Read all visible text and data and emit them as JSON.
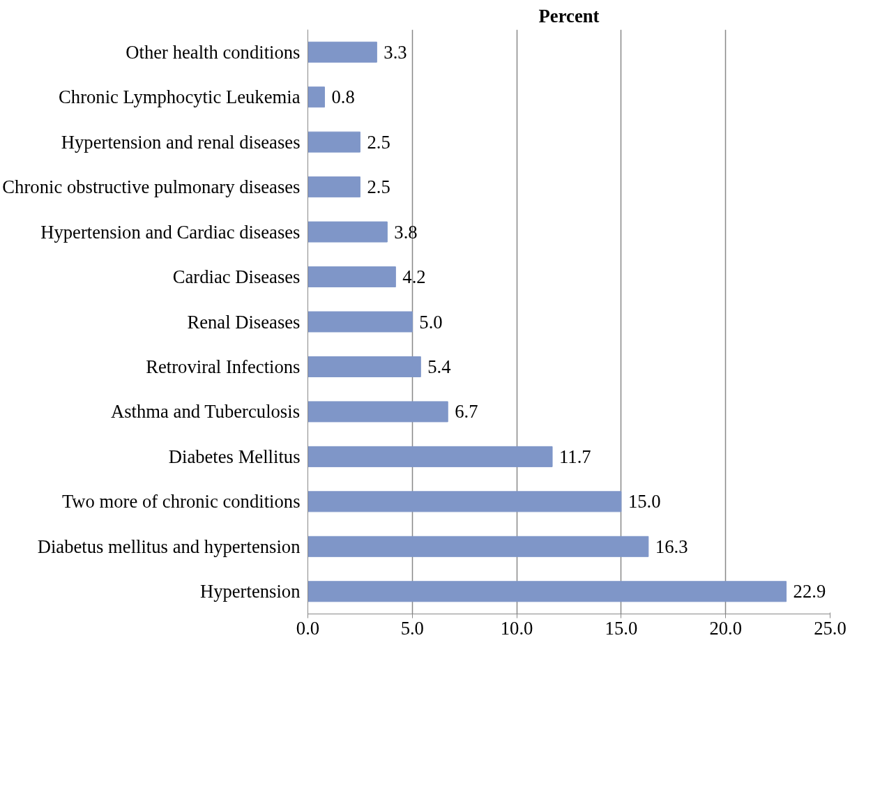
{
  "chart_data": {
    "type": "bar",
    "orientation": "horizontal",
    "title": "Percent",
    "categories": [
      "Other health conditions",
      "Chronic Lymphocytic Leukemia",
      "Hypertension and renal diseases",
      "Chronic obstructive pulmonary diseases",
      "Hypertension and Cardiac diseases",
      "Cardiac Diseases",
      "Renal Diseases",
      "Retroviral Infections",
      "Asthma and Tuberculosis",
      "Diabetes Mellitus",
      "Two more of chronic conditions",
      "Diabetus mellitus and hypertension",
      "Hypertension"
    ],
    "values": [
      3.3,
      0.8,
      2.5,
      2.5,
      3.8,
      4.2,
      5.0,
      5.4,
      6.7,
      11.7,
      15.0,
      16.3,
      22.9
    ],
    "value_labels": [
      "3.3",
      "0.8",
      "2.5",
      "2.5",
      "3.8",
      "4.2",
      "5.0",
      "5.4",
      "6.7",
      "11.7",
      "15.0",
      "16.3",
      "22.9"
    ],
    "color": "#7f96c8",
    "xlim": [
      0,
      25
    ],
    "xticks": [
      {
        "value": 0,
        "label": "0.0"
      },
      {
        "value": 5,
        "label": "5.0"
      },
      {
        "value": 10,
        "label": "10.0"
      },
      {
        "value": 15,
        "label": "15.0"
      },
      {
        "value": 20,
        "label": "20.0"
      },
      {
        "value": 25,
        "label": "25.0"
      }
    ],
    "grid": "x"
  }
}
